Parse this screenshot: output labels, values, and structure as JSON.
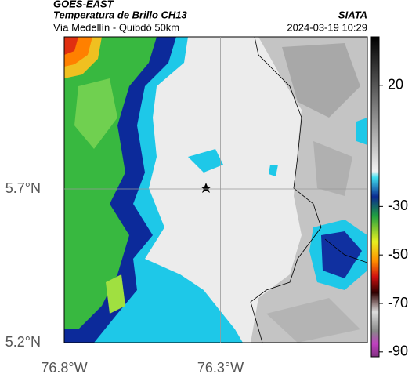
{
  "header": {
    "title": "GOES-EAST",
    "subtitle": "Temperatura de Brillo CH13",
    "location": "Vía Medellín - Quibdó 50km",
    "source": "SIATA",
    "datetime": "2024-03-19 10:29"
  },
  "map": {
    "lonlim": [
      -76.8,
      -75.83
    ],
    "latlim": [
      5.2,
      6.195
    ],
    "lon_ticks": [
      {
        "value": -76.8,
        "label": "76.8°W"
      },
      {
        "value": -76.3,
        "label": "76.3°W"
      }
    ],
    "lat_ticks": [
      {
        "value": 5.7,
        "label": "5.7°N"
      },
      {
        "value": 5.2,
        "label": "5.2°N"
      }
    ]
  },
  "colorbar": {
    "lim": [
      -92,
      40
    ],
    "ticks": [
      20,
      -30,
      -50,
      -70,
      -90
    ]
  }
}
